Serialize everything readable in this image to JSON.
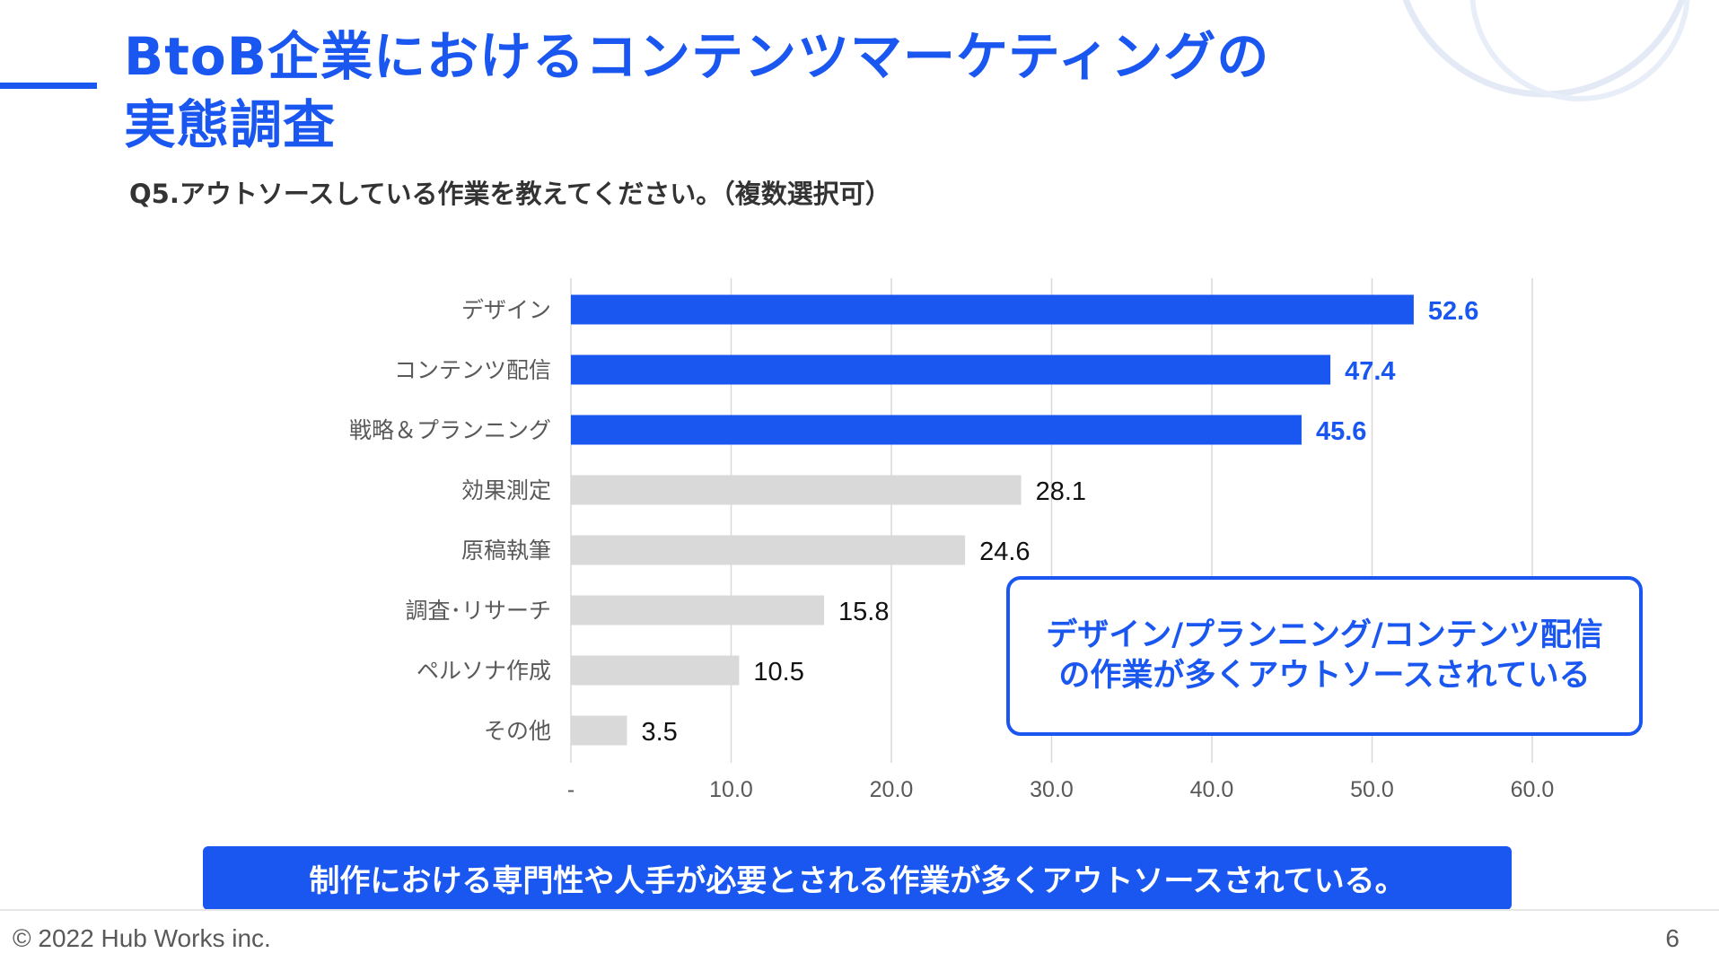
{
  "colors": {
    "accent": "#1a56f0",
    "bar_highlight": "#1a56f0",
    "bar_muted": "#d9d9d9",
    "grid": "#d9d9d9",
    "text_dark": "#333333",
    "text_muted": "#595959"
  },
  "title": {
    "line1": "BtoB企業におけるコンテンツマーケティングの",
    "line2": "実態調査"
  },
  "question": "Q5.アウトソースしている作業を教えてください。（複数選択可）",
  "chart_data": {
    "type": "bar",
    "orientation": "horizontal",
    "categories": [
      "デザイン",
      "コンテンツ配信",
      "戦略＆プランニング",
      "効果測定",
      "原稿執筆",
      "調査･リサーチ",
      "ペルソナ作成",
      "その他"
    ],
    "values": [
      52.6,
      47.4,
      45.6,
      28.1,
      24.6,
      15.8,
      10.5,
      3.5
    ],
    "value_labels": [
      "52.6",
      "47.4",
      "45.6",
      "28.1",
      "24.6",
      "15.8",
      "10.5",
      "3.5"
    ],
    "highlighted": [
      true,
      true,
      true,
      false,
      false,
      false,
      false,
      false
    ],
    "x_ticks": [
      0,
      10,
      20,
      30,
      40,
      50,
      60
    ],
    "x_tick_labels": [
      "-",
      "10.0",
      "20.0",
      "30.0",
      "40.0",
      "50.0",
      "60.0"
    ],
    "xlim": [
      0,
      60
    ],
    "grid": true,
    "title": "",
    "xlabel": "",
    "ylabel": ""
  },
  "callout": {
    "line1": "デザイン/プランニング/コンテンツ配信",
    "line2": "の作業が多くアウトソースされている"
  },
  "banner": "制作における専門性や人手が必要とされる作業が多くアウトソースされている。",
  "footer": {
    "copyright": "© 2022 Hub Works inc.",
    "page_number": "6"
  }
}
